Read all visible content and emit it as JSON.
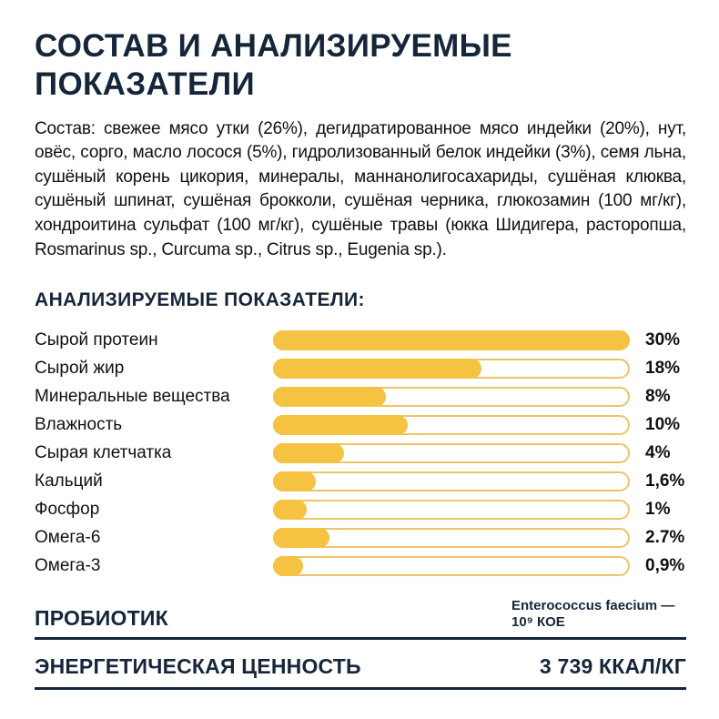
{
  "header": {
    "title_line1": "СОСТАВ И АНАЛИЗИРУЕМЫЕ",
    "title_line2": "ПОКАЗАТЕЛИ"
  },
  "composition": {
    "text": "Состав: свежее мясо утки (26%), дегидратированное мясо индейки (20%), нут, овёс, сорго, масло лосося (5%), гидролизованный белок индейки (3%), семя льна, сушёный корень цикория, минералы, маннанолигосахариды, сушёная клюква, сушёный шпинат, сушёная брокколи, сушёная черника, глюкозамин (100 мг/кг), хондроитина сульфат (100 мг/кг), сушёные травы (юкка Шидигера, расторопша, Rosmarinus sp., Curcuma sp., Citrus sp., Eugenia sp.)."
  },
  "section": {
    "heading": "АНАЛИЗИРУЕМЫЕ ПОКАЗАТЕЛИ:"
  },
  "chart_data": {
    "type": "bar",
    "orientation": "horizontal",
    "title": "АНАЛИЗИРУЕМЫЕ ПОКАЗАТЕЛИ:",
    "categories": [
      "Сырой протеин",
      "Сырой жир",
      "Минеральные вещества",
      "Влажность",
      "Сырая клетчатка",
      "Кальций",
      "Фосфор",
      "Омега-6",
      "Омега-3"
    ],
    "values": [
      30,
      18,
      8,
      10,
      4,
      1.6,
      1,
      2.7,
      0.9
    ],
    "value_labels": [
      "30%",
      "18%",
      "8%",
      "10%",
      "4%",
      "1,6%",
      "1%",
      "2.7%",
      "0,9%"
    ],
    "xlim": [
      0,
      30
    ],
    "grid": false,
    "legend": "none",
    "fill_pct": [
      100,
      58,
      31,
      37,
      19,
      11,
      8.5,
      15,
      7.5
    ],
    "bar_fill_color": "#F5C242",
    "bar_border_color": "#ECC566"
  },
  "probiotic": {
    "label": "ПРОБИОТИК",
    "value": "Enterococcus faecium — 10⁹ КОЕ"
  },
  "energy": {
    "label": "ЭНЕРГЕТИЧЕСКАЯ ЦЕННОСТЬ",
    "value": "3 739 ККАЛ/КГ"
  },
  "colors": {
    "navy": "#16263A",
    "body_text": "#101010",
    "bar_fill": "#F5C242",
    "bar_border": "#ECC566",
    "background": "#FFFFFF"
  }
}
